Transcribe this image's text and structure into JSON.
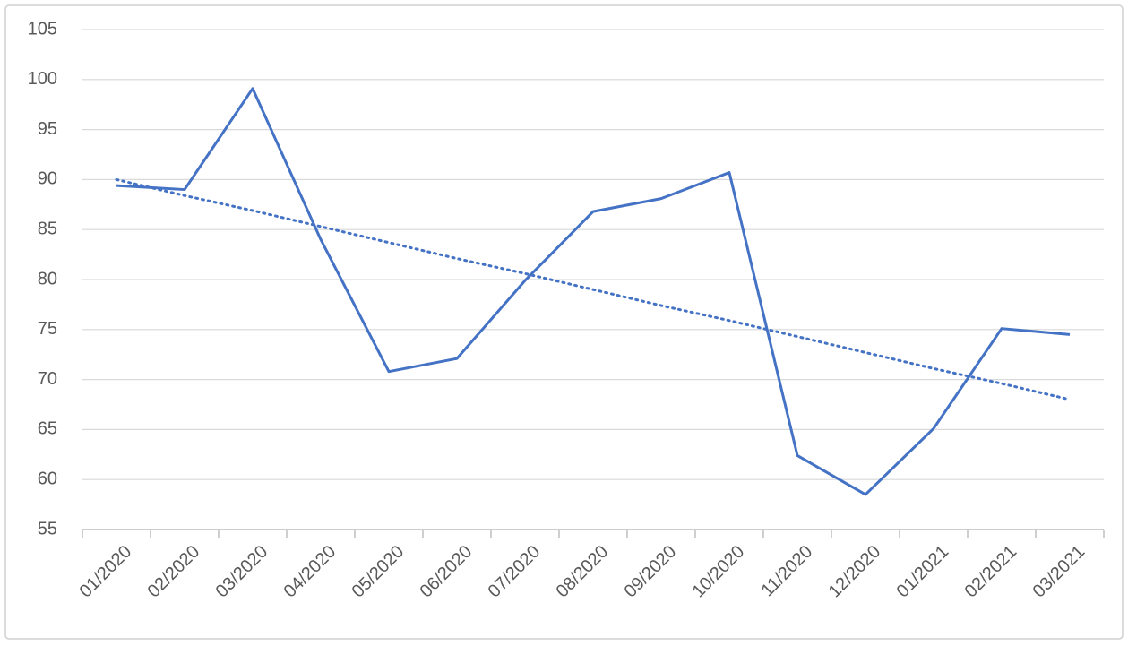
{
  "chart_data": {
    "type": "line",
    "categories": [
      "01/2020",
      "02/2020",
      "03/2020",
      "04/2020",
      "05/2020",
      "06/2020",
      "07/2020",
      "08/2020",
      "09/2020",
      "10/2020",
      "11/2020",
      "12/2020",
      "01/2021",
      "02/2021",
      "03/2021"
    ],
    "series": [
      {
        "color": "#4472c4",
        "style": "solid",
        "values": [
          89.4,
          89.0,
          99.1,
          84.0,
          70.8,
          72.1,
          79.9,
          86.8,
          88.1,
          90.7,
          62.4,
          58.5,
          65.1,
          75.1,
          74.5
        ]
      },
      {
        "color": "#4472c4",
        "style": "dotted",
        "values": [
          90.0,
          88.4,
          86.9,
          85.3,
          83.7,
          82.1,
          80.6,
          79.0,
          77.4,
          75.9,
          74.3,
          72.7,
          71.1,
          69.6,
          68.0
        ]
      }
    ],
    "ylim": [
      55,
      105
    ],
    "yticks": [
      55,
      60,
      65,
      70,
      75,
      80,
      85,
      90,
      95,
      100,
      105
    ],
    "grid": true
  }
}
